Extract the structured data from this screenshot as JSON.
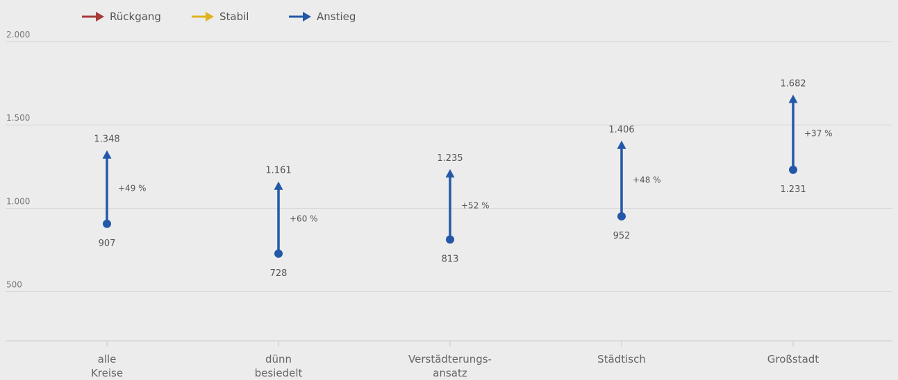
{
  "chart_data": {
    "type": "dumbbell-arrow",
    "categories": [
      [
        "alle",
        "Kreise"
      ],
      [
        "dünn",
        "besiedelt"
      ],
      [
        "Verstädterungs-",
        "ansatz"
      ],
      [
        "Städtisch"
      ],
      [
        "Großstadt"
      ]
    ],
    "series": [
      {
        "name": "start",
        "values": [
          907,
          728,
          813,
          952,
          1231
        ]
      },
      {
        "name": "end",
        "values": [
          1348,
          1161,
          1235,
          1406,
          1682
        ]
      }
    ],
    "start_labels": [
      "907",
      "728",
      "813",
      "952",
      "1.231"
    ],
    "end_labels": [
      "1.348",
      "1.161",
      "1.235",
      "1.406",
      "1.682"
    ],
    "change_labels": [
      "+49 %",
      "+60 %",
      "+52 %",
      "+48 %",
      "+37 %"
    ],
    "y_ticks": [
      {
        "value": 500,
        "label": "500"
      },
      {
        "value": 1000,
        "label": "1.000"
      },
      {
        "value": 1500,
        "label": "1.500"
      },
      {
        "value": 2000,
        "label": "2.000"
      }
    ],
    "ylim": [
      200,
      2000
    ],
    "grid": true,
    "legend": [
      {
        "label": "Rückgang",
        "color": "#a83a3a"
      },
      {
        "label": "Stabil",
        "color": "#e0b21f"
      },
      {
        "label": "Anstieg",
        "color": "#2358a8"
      }
    ],
    "legend_position": "top-left",
    "series_color": "#2358a8"
  }
}
